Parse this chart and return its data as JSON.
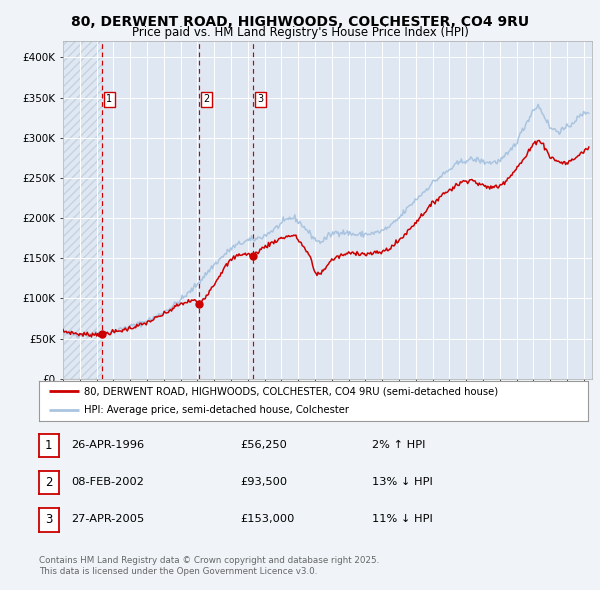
{
  "title1": "80, DERWENT ROAD, HIGHWOODS, COLCHESTER, CO4 9RU",
  "title2": "Price paid vs. HM Land Registry's House Price Index (HPI)",
  "legend_line1": "80, DERWENT ROAD, HIGHWOODS, COLCHESTER, CO4 9RU (semi-detached house)",
  "legend_line2": "HPI: Average price, semi-detached house, Colchester",
  "footer": "Contains HM Land Registry data © Crown copyright and database right 2025.\nThis data is licensed under the Open Government Licence v3.0.",
  "transactions": [
    {
      "num": 1,
      "date": "26-APR-1996",
      "price": 56250,
      "price_str": "£56,250",
      "pct": "2%",
      "dir": "↑",
      "year": 1996.32
    },
    {
      "num": 2,
      "date": "08-FEB-2002",
      "price": 93500,
      "price_str": "£93,500",
      "pct": "13%",
      "dir": "↓",
      "year": 2002.1
    },
    {
      "num": 3,
      "date": "27-APR-2005",
      "price": 153000,
      "price_str": "£153,000",
      "pct": "11%",
      "dir": "↓",
      "year": 2005.32
    }
  ],
  "hpi_color": "#aac4e0",
  "price_color": "#cc0000",
  "dashed_color": "#cc0000",
  "bg_color": "#f0f4f8",
  "plot_bg": "#dfe8f2",
  "grid_color": "#ffffff",
  "ylim": [
    0,
    420000
  ],
  "yticks": [
    0,
    50000,
    100000,
    150000,
    200000,
    250000,
    300000,
    350000,
    400000
  ],
  "ytick_labels": [
    "£0",
    "£50K",
    "£100K",
    "£150K",
    "£200K",
    "£250K",
    "£300K",
    "£350K",
    "£400K"
  ],
  "xmin": 1994.0,
  "xmax": 2025.5,
  "hpi_anchors": [
    [
      1994.0,
      57000
    ],
    [
      1994.5,
      56000
    ],
    [
      1995.0,
      55000
    ],
    [
      1995.5,
      55500
    ],
    [
      1996.0,
      56000
    ],
    [
      1996.5,
      57000
    ],
    [
      1997.0,
      59000
    ],
    [
      1997.5,
      62000
    ],
    [
      1998.0,
      65000
    ],
    [
      1998.5,
      68000
    ],
    [
      1999.0,
      72000
    ],
    [
      1999.5,
      77000
    ],
    [
      2000.0,
      83000
    ],
    [
      2000.5,
      90000
    ],
    [
      2001.0,
      98000
    ],
    [
      2001.5,
      107000
    ],
    [
      2002.0,
      118000
    ],
    [
      2002.5,
      130000
    ],
    [
      2003.0,
      142000
    ],
    [
      2003.5,
      152000
    ],
    [
      2004.0,
      162000
    ],
    [
      2004.5,
      168000
    ],
    [
      2005.0,
      172000
    ],
    [
      2005.5,
      174000
    ],
    [
      2006.0,
      178000
    ],
    [
      2006.5,
      185000
    ],
    [
      2007.0,
      193000
    ],
    [
      2007.5,
      200000
    ],
    [
      2007.8,
      200000
    ],
    [
      2008.3,
      190000
    ],
    [
      2008.8,
      178000
    ],
    [
      2009.2,
      170000
    ],
    [
      2009.5,
      172000
    ],
    [
      2009.8,
      178000
    ],
    [
      2010.3,
      183000
    ],
    [
      2010.8,
      182000
    ],
    [
      2011.5,
      179000
    ],
    [
      2012.0,
      180000
    ],
    [
      2012.5,
      181000
    ],
    [
      2013.0,
      184000
    ],
    [
      2013.5,
      190000
    ],
    [
      2014.0,
      200000
    ],
    [
      2014.5,
      212000
    ],
    [
      2015.0,
      223000
    ],
    [
      2015.5,
      233000
    ],
    [
      2016.0,
      244000
    ],
    [
      2016.5,
      252000
    ],
    [
      2017.0,
      260000
    ],
    [
      2017.5,
      268000
    ],
    [
      2018.0,
      272000
    ],
    [
      2018.3,
      273000
    ],
    [
      2018.8,
      272000
    ],
    [
      2019.0,
      270000
    ],
    [
      2019.5,
      269000
    ],
    [
      2020.0,
      271000
    ],
    [
      2020.5,
      280000
    ],
    [
      2021.0,
      295000
    ],
    [
      2021.5,
      315000
    ],
    [
      2022.0,
      335000
    ],
    [
      2022.3,
      340000
    ],
    [
      2022.7,
      325000
    ],
    [
      2023.0,
      312000
    ],
    [
      2023.5,
      308000
    ],
    [
      2024.0,
      312000
    ],
    [
      2024.5,
      322000
    ],
    [
      2025.0,
      330000
    ],
    [
      2025.3,
      333000
    ]
  ],
  "price_anchors": [
    [
      1994.0,
      59000
    ],
    [
      1994.5,
      57500
    ],
    [
      1995.0,
      55500
    ],
    [
      1995.5,
      55000
    ],
    [
      1996.0,
      55500
    ],
    [
      1996.32,
      56250
    ],
    [
      1996.8,
      57500
    ],
    [
      1997.3,
      59000
    ],
    [
      1997.8,
      62000
    ],
    [
      1998.3,
      65000
    ],
    [
      1998.8,
      68000
    ],
    [
      1999.3,
      73000
    ],
    [
      1999.8,
      78000
    ],
    [
      2000.3,
      84000
    ],
    [
      2000.8,
      91000
    ],
    [
      2001.3,
      95000
    ],
    [
      2001.8,
      98000
    ],
    [
      2002.1,
      93500
    ],
    [
      2002.5,
      103000
    ],
    [
      2003.0,
      118000
    ],
    [
      2003.5,
      135000
    ],
    [
      2004.0,
      148000
    ],
    [
      2004.5,
      155000
    ],
    [
      2005.0,
      155000
    ],
    [
      2005.32,
      153000
    ],
    [
      2005.7,
      160000
    ],
    [
      2006.0,
      164000
    ],
    [
      2006.5,
      170000
    ],
    [
      2007.0,
      175000
    ],
    [
      2007.5,
      178000
    ],
    [
      2007.8,
      178000
    ],
    [
      2008.2,
      168000
    ],
    [
      2008.7,
      152000
    ],
    [
      2009.0,
      132000
    ],
    [
      2009.3,
      130000
    ],
    [
      2009.6,
      138000
    ],
    [
      2010.0,
      148000
    ],
    [
      2010.5,
      153000
    ],
    [
      2011.0,
      156000
    ],
    [
      2011.5,
      157000
    ],
    [
      2012.0,
      155000
    ],
    [
      2012.5,
      156000
    ],
    [
      2013.0,
      158000
    ],
    [
      2013.5,
      163000
    ],
    [
      2014.0,
      172000
    ],
    [
      2014.5,
      183000
    ],
    [
      2015.0,
      195000
    ],
    [
      2015.5,
      207000
    ],
    [
      2016.0,
      218000
    ],
    [
      2016.5,
      228000
    ],
    [
      2017.0,
      235000
    ],
    [
      2017.5,
      242000
    ],
    [
      2018.0,
      247000
    ],
    [
      2018.3,
      248000
    ],
    [
      2018.7,
      243000
    ],
    [
      2019.0,
      240000
    ],
    [
      2019.5,
      238000
    ],
    [
      2020.0,
      240000
    ],
    [
      2020.5,
      250000
    ],
    [
      2021.0,
      262000
    ],
    [
      2021.5,
      275000
    ],
    [
      2022.0,
      292000
    ],
    [
      2022.3,
      298000
    ],
    [
      2022.7,
      288000
    ],
    [
      2023.0,
      276000
    ],
    [
      2023.5,
      270000
    ],
    [
      2024.0,
      268000
    ],
    [
      2024.5,
      275000
    ],
    [
      2025.0,
      283000
    ],
    [
      2025.3,
      288000
    ]
  ]
}
